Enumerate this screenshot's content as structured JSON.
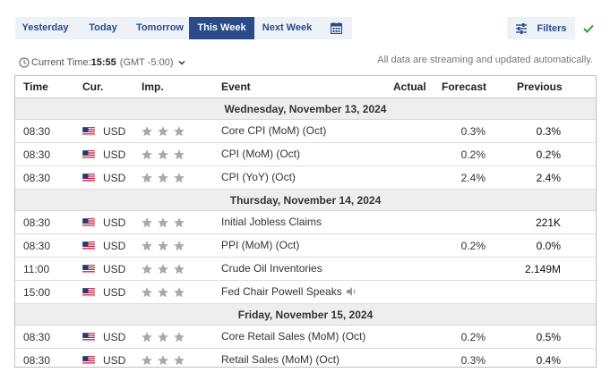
{
  "tabs": [
    {
      "label": "Yesterday",
      "width": 67
    },
    {
      "label": "Today",
      "width": 62
    },
    {
      "label": "Tomorrow",
      "width": 65
    },
    {
      "label": "This Week",
      "width": 73,
      "active": true
    },
    {
      "label": "Next Week",
      "width": 73
    }
  ],
  "filters_label": "Filters",
  "time_bar": {
    "label": "Current Time:",
    "time": "15:55",
    "timezone": "(GMT -5:00)"
  },
  "streaming_note": "All data are streaming and updated automatically.",
  "columns": {
    "time": "Time",
    "currency": "Cur.",
    "importance": "Imp.",
    "event": "Event",
    "actual": "Actual",
    "forecast": "Forecast",
    "previous": "Previous"
  },
  "days": [
    {
      "date": "Wednesday, November 13, 2024",
      "events": [
        {
          "time": "08:30",
          "currency": "USD",
          "event": "Core CPI (MoM) (Oct)",
          "actual": "",
          "forecast": "0.3%",
          "previous": "0.3%"
        },
        {
          "time": "08:30",
          "currency": "USD",
          "event": "CPI (MoM) (Oct)",
          "actual": "",
          "forecast": "0.2%",
          "previous": "0.2%"
        },
        {
          "time": "08:30",
          "currency": "USD",
          "event": "CPI (YoY) (Oct)",
          "actual": "",
          "forecast": "2.4%",
          "previous": "2.4%"
        }
      ]
    },
    {
      "date": "Thursday, November 14, 2024",
      "events": [
        {
          "time": "08:30",
          "currency": "USD",
          "event": "Initial Jobless Claims",
          "actual": "",
          "forecast": "",
          "previous": "221K"
        },
        {
          "time": "08:30",
          "currency": "USD",
          "event": "PPI (MoM) (Oct)",
          "actual": "",
          "forecast": "0.2%",
          "previous": "0.0%"
        },
        {
          "time": "11:00",
          "currency": "USD",
          "event": "Crude Oil Inventories",
          "actual": "",
          "forecast": "",
          "previous": "2.149M"
        },
        {
          "time": "15:00",
          "currency": "USD",
          "event": "Fed Chair Powell Speaks",
          "actual": "",
          "forecast": "",
          "previous": "",
          "speech": true
        }
      ]
    },
    {
      "date": "Friday, November 15, 2024",
      "events": [
        {
          "time": "08:30",
          "currency": "USD",
          "event": "Core Retail Sales (MoM) (Oct)",
          "actual": "",
          "forecast": "0.2%",
          "previous": "0.5%"
        },
        {
          "time": "08:30",
          "currency": "USD",
          "event": "Retail Sales (MoM) (Oct)",
          "actual": "",
          "forecast": "0.3%",
          "previous": "0.4%"
        }
      ]
    }
  ],
  "colors": {
    "accent": "#2a4a8a",
    "tab_bg": "#eef1f6",
    "star": "#a9a9a9",
    "check": "#2e9d3a"
  }
}
